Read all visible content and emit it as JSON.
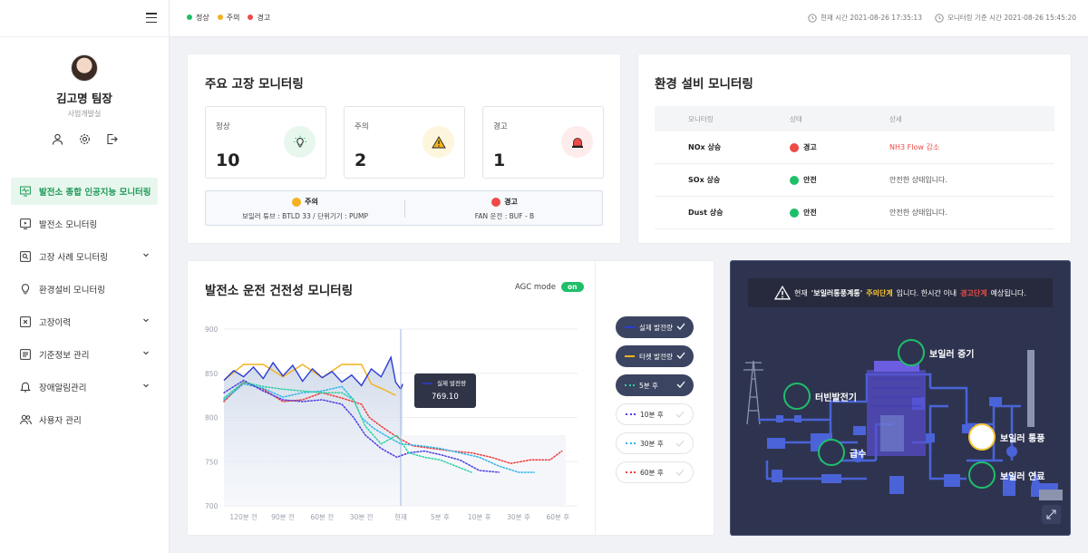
{
  "app": {
    "page_title": "발전소 종합 인공지능 모니터링"
  },
  "topbar": {
    "legend": [
      {
        "label": "정상",
        "color": "#1fbf6a"
      },
      {
        "label": "주의",
        "color": "#f5b21e"
      },
      {
        "label": "경고",
        "color": "#ef4a46"
      }
    ],
    "current_time_label": "현재 시간 2021-08-26 17:35:13",
    "monitoring_time_label": "모니터링 기준 시간 2021-08-26 15:45:20"
  },
  "profile": {
    "name": "김고명 팀장",
    "dept": "사업개발실"
  },
  "sidebar": {
    "items": [
      {
        "label": "발전소 종합 인공지능 모니터링",
        "icon": "monitor-wave-icon",
        "active": true
      },
      {
        "label": "발전소 모니터링",
        "icon": "play-monitor-icon"
      },
      {
        "label": "고장 사례 모니터링",
        "icon": "search-doc-icon",
        "expandable": true
      },
      {
        "label": "환경설비 모니터링",
        "icon": "lightbulb-icon"
      },
      {
        "label": "고장이력",
        "icon": "close-doc-icon",
        "expandable": true
      },
      {
        "label": "기준정보 관리",
        "icon": "list-doc-icon",
        "expandable": true
      },
      {
        "label": "장애알림관리",
        "icon": "bell-icon",
        "expandable": true
      },
      {
        "label": "사용자 관리",
        "icon": "users-icon"
      }
    ]
  },
  "fault": {
    "title": "주요 고장 모니터링",
    "boxes": [
      {
        "label": "정상",
        "count": "10",
        "icon": "lightbulb-icon",
        "color": "#1fbf6a"
      },
      {
        "label": "주의",
        "count": "2",
        "icon": "warning-icon",
        "color": "#f5b21e"
      },
      {
        "label": "경고",
        "count": "1",
        "icon": "siren-icon",
        "color": "#ef4a46"
      }
    ],
    "summary": [
      {
        "status": "주의",
        "detail": "보일러 튜브 : BTLD 33 / 단위기기 : PUMP"
      },
      {
        "status": "경고",
        "detail": "FAN 운전 : BUF - B"
      }
    ]
  },
  "env": {
    "title": "환경 설비 모니터링",
    "headers": [
      "모니터링",
      "상태",
      "상세"
    ],
    "rows": [
      {
        "item": "NOx 상승",
        "status": "경고",
        "detail": "NH3 Flow 감소",
        "color": "#ef4a46"
      },
      {
        "item": "SOx 상승",
        "status": "안전",
        "detail": "안전한 상태입니다.",
        "color": "#1fbf6a"
      },
      {
        "item": "Dust 상승",
        "status": "안전",
        "detail": "안전한 상태입니다.",
        "color": "#1fbf6a"
      }
    ]
  },
  "ops": {
    "title": "발전소 운전 건전성 모니터링",
    "agc_label": "AGC mode",
    "agc_state": "on",
    "tooltip": {
      "series": "실제 발전량",
      "value": "769.10"
    },
    "series_buttons": [
      {
        "label": "실제 발전량",
        "active": true,
        "color": "#2b3bd6",
        "style": "solid"
      },
      {
        "label": "타켓 발전량",
        "active": true,
        "color": "#f5b21e",
        "style": "solid"
      },
      {
        "label": "5분 후",
        "active": true,
        "color": "#2bd1a0",
        "style": "dotted"
      },
      {
        "label": "10분 후",
        "active": false,
        "color": "#4b3ce0",
        "style": "dotted"
      },
      {
        "label": "30분 후",
        "active": false,
        "color": "#2fb6e8",
        "style": "dotted"
      },
      {
        "label": "60분 후",
        "active": false,
        "color": "#ef3b3b",
        "style": "dotted"
      }
    ]
  },
  "chart_data": {
    "type": "line",
    "title": "",
    "xlabel": "",
    "ylabel": "",
    "ylim": [
      700,
      900
    ],
    "yticks": [
      "900",
      "850",
      "800",
      "750",
      "700"
    ],
    "xticks": [
      "120분 전",
      "90분 전",
      "60분 전",
      "30분 전",
      "현재",
      "5분 후",
      "10분 후",
      "30분 후",
      "60분 후"
    ],
    "x_index_range": [
      -0.5,
      8.5
    ],
    "now_index": 4,
    "series": [
      {
        "name": "실제 발전량",
        "x": [
          -0.5,
          -0.25,
          0,
          0.25,
          0.5,
          0.75,
          1,
          1.25,
          1.5,
          1.75,
          2,
          2.25,
          2.5,
          2.75,
          3,
          3.25,
          3.5,
          3.75,
          3.87,
          4,
          4.05
        ],
        "y": [
          842,
          853,
          846,
          857,
          844,
          862,
          847,
          859,
          841,
          855,
          845,
          852,
          840,
          848,
          836,
          855,
          846,
          868,
          840,
          832,
          838
        ]
      },
      {
        "name": "타켓 발전량",
        "x": [
          -0.5,
          0,
          0.5,
          1,
          1.5,
          2,
          2.5,
          3,
          3.25,
          3.55,
          3.87
        ],
        "y": [
          842,
          860,
          860,
          846,
          860,
          845,
          860,
          860,
          838,
          832,
          825
        ]
      },
      {
        "name": "5분 후",
        "x": [
          -0.5,
          0,
          0.5,
          1,
          1.5,
          2,
          2.5,
          2.8,
          3.1,
          3.5,
          3.9,
          4.2,
          4.6,
          5.0,
          5.4,
          5.8
        ],
        "y": [
          822,
          840,
          835,
          832,
          830,
          828,
          828,
          820,
          790,
          770,
          780,
          760,
          755,
          752,
          745,
          738
        ]
      },
      {
        "name": "10분 후",
        "x": [
          -0.5,
          0,
          0.5,
          1,
          1.5,
          2,
          2.5,
          2.8,
          3.1,
          3.5,
          3.9,
          4.2,
          4.6,
          5.0,
          5.5,
          6.0,
          6.5
        ],
        "y": [
          828,
          842,
          830,
          820,
          818,
          820,
          815,
          800,
          780,
          765,
          755,
          760,
          762,
          758,
          752,
          740,
          738
        ]
      },
      {
        "name": "30분 후",
        "x": [
          -0.5,
          0,
          0.5,
          1,
          1.5,
          2,
          2.5,
          2.8,
          3.0,
          3.3,
          3.6,
          4.0,
          4.5,
          5.0,
          5.5,
          6.0,
          6.5,
          7.0,
          7.4
        ],
        "y": [
          820,
          838,
          833,
          823,
          828,
          830,
          835,
          820,
          800,
          788,
          780,
          770,
          768,
          765,
          760,
          755,
          745,
          738,
          738
        ]
      },
      {
        "name": "60분 후",
        "x": [
          -0.5,
          0,
          0.5,
          1,
          1.5,
          2,
          2.5,
          3.0,
          3.2,
          3.5,
          3.9,
          4.3,
          4.8,
          5.3,
          5.8,
          6.3,
          6.8,
          7.3,
          7.8,
          8.1
        ],
        "y": [
          818,
          840,
          832,
          818,
          820,
          828,
          822,
          815,
          800,
          790,
          778,
          768,
          765,
          762,
          760,
          755,
          748,
          752,
          752,
          762
        ]
      }
    ]
  },
  "diagram": {
    "notice_pre": "현재",
    "notice_target": "'보일러통풍계통'",
    "notice_stage": "주의단계",
    "notice_mid": "입니다. 한시간 이내",
    "notice_warn": "경고단계",
    "notice_post": "예상됩니다.",
    "labels": [
      {
        "text": "보일러 증기",
        "color": "#1fbf6a",
        "icon": "boiler-steam-icon"
      },
      {
        "text": "터빈발전기",
        "color": "#1fbf6a",
        "icon": "turbine-icon"
      },
      {
        "text": "급수",
        "color": "#1fbf6a",
        "icon": "water-drop-icon"
      },
      {
        "text": "보일러 통풍",
        "color": "#f9c632",
        "icon": "fan-icon"
      },
      {
        "text": "보일러 연료",
        "color": "#1fbf6a",
        "icon": "fuel-icon"
      }
    ]
  }
}
